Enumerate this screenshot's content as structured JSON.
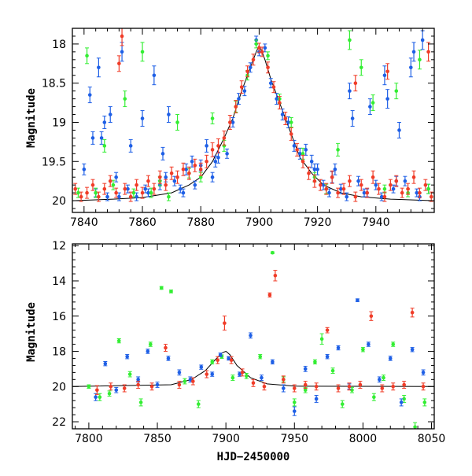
{
  "colors": {
    "green": "#33ee33",
    "blue": "#1e5fe6",
    "red": "#f03c28",
    "model": "#000000"
  },
  "chart_data": [
    {
      "type": "scatter",
      "panel": "top",
      "xlabel": "",
      "ylabel": "Magnitude",
      "xlim": [
        7836,
        7960
      ],
      "ylim": [
        20.15,
        17.8
      ],
      "y_inverted": true,
      "xticks": [
        7840,
        7860,
        7880,
        7900,
        7920,
        7940
      ],
      "yticks": [
        18,
        18.5,
        19,
        19.5,
        20
      ],
      "ytick_labels": [
        "18",
        "18.5",
        "19",
        "19.5",
        "20"
      ],
      "error_bars": true,
      "model_curve": {
        "x": [
          7836,
          7850,
          7860,
          7870,
          7876,
          7880,
          7884,
          7888,
          7891,
          7894,
          7896,
          7898,
          7899,
          7900,
          7901,
          7902,
          7904,
          7906,
          7908,
          7911,
          7914,
          7918,
          7922,
          7928,
          7935,
          7945,
          7960
        ],
        "y": [
          20.0,
          19.98,
          19.96,
          19.9,
          19.8,
          19.7,
          19.5,
          19.2,
          18.95,
          18.6,
          18.4,
          18.2,
          18.1,
          18.02,
          18.1,
          18.2,
          18.45,
          18.65,
          18.85,
          19.15,
          19.45,
          19.65,
          19.8,
          19.9,
          19.95,
          19.98,
          20.0
        ]
      },
      "series": [
        {
          "color": "blue",
          "x": [
            7840,
            7842,
            7844,
            7845,
            7846,
            7848,
            7849,
            7851,
            7853,
            7855,
            7856,
            7858,
            7860,
            7862,
            7864,
            7866,
            7868,
            7869,
            7871,
            7873,
            7875,
            7877,
            7878,
            7880,
            7882,
            7884,
            7886,
            7889,
            7891,
            7893,
            7895,
            7897,
            7899,
            7900,
            7902,
            7904,
            7906,
            7908,
            7910,
            7912,
            7914,
            7916,
            7918,
            7920,
            7922,
            7924,
            7926,
            7928,
            7930,
            7932,
            7934,
            7936,
            7938,
            7940,
            7942,
            7944,
            7946,
            7948,
            7950,
            7952,
            7954,
            7956,
            7958,
            7843,
            7847,
            7852,
            7861,
            7867,
            7874,
            7885,
            7919,
            7925,
            7931,
            7937,
            7943,
            7947,
            7953,
            7955
          ],
          "y": [
            19.6,
            18.65,
            19.9,
            18.3,
            19.2,
            19.95,
            18.9,
            19.7,
            18.1,
            19.85,
            19.3,
            19.95,
            18.95,
            19.9,
            18.4,
            19.8,
            19.7,
            18.9,
            19.75,
            19.85,
            19.6,
            19.5,
            19.8,
            19.55,
            19.3,
            19.7,
            19.45,
            19.4,
            19.0,
            18.7,
            18.6,
            18.3,
            17.95,
            18.1,
            18.05,
            18.5,
            18.7,
            18.9,
            19.0,
            19.3,
            19.4,
            19.35,
            19.5,
            19.6,
            19.8,
            19.9,
            19.6,
            19.85,
            19.95,
            18.95,
            19.75,
            19.9,
            18.8,
            19.8,
            19.95,
            18.7,
            19.85,
            19.1,
            19.75,
            18.3,
            19.9,
            17.95,
            19.85,
            19.2,
            19.0,
            19.95,
            19.85,
            19.4,
            19.9,
            19.5,
            19.6,
            19.7,
            18.6,
            19.9,
            18.4,
            19.75,
            18.1,
            19.95
          ],
          "err": [
            0.07,
            0.1,
            0.05,
            0.12,
            0.08,
            0.05,
            0.1,
            0.06,
            0.12,
            0.05,
            0.08,
            0.05,
            0.1,
            0.05,
            0.12,
            0.06,
            0.06,
            0.1,
            0.06,
            0.05,
            0.07,
            0.07,
            0.05,
            0.07,
            0.08,
            0.06,
            0.07,
            0.06,
            0.06,
            0.07,
            0.06,
            0.06,
            0.05,
            0.05,
            0.05,
            0.06,
            0.07,
            0.07,
            0.07,
            0.07,
            0.07,
            0.07,
            0.08,
            0.07,
            0.06,
            0.05,
            0.07,
            0.06,
            0.05,
            0.1,
            0.06,
            0.05,
            0.1,
            0.06,
            0.05,
            0.12,
            0.05,
            0.1,
            0.06,
            0.12,
            0.05,
            0.12,
            0.06,
            0.08,
            0.08,
            0.05,
            0.05,
            0.08,
            0.05,
            0.07,
            0.07,
            0.07,
            0.1,
            0.05,
            0.12,
            0.06,
            0.12,
            0.05
          ]
        },
        {
          "color": "green",
          "x": [
            7838,
            7841,
            7844,
            7847,
            7850,
            7854,
            7857,
            7860,
            7863,
            7866,
            7869,
            7872,
            7876,
            7880,
            7884,
            7888,
            7892,
            7896,
            7899,
            7903,
            7907,
            7911,
            7915,
            7919,
            7923,
            7927,
            7931,
            7935,
            7939,
            7943,
            7947,
            7951,
            7955,
            7958
          ],
          "y": [
            19.9,
            18.15,
            19.9,
            19.3,
            19.8,
            18.7,
            19.9,
            18.1,
            19.9,
            19.75,
            19.95,
            19.0,
            19.65,
            19.7,
            18.95,
            19.3,
            18.8,
            18.4,
            18.0,
            18.15,
            18.7,
            19.0,
            19.4,
            19.7,
            19.85,
            19.35,
            17.95,
            18.3,
            18.75,
            19.85,
            18.6,
            19.9,
            18.2,
            19.85
          ],
          "err": [
            0.06,
            0.1,
            0.06,
            0.08,
            0.06,
            0.1,
            0.05,
            0.12,
            0.06,
            0.06,
            0.05,
            0.1,
            0.06,
            0.06,
            0.07,
            0.07,
            0.07,
            0.06,
            0.05,
            0.05,
            0.06,
            0.06,
            0.07,
            0.06,
            0.06,
            0.08,
            0.12,
            0.1,
            0.1,
            0.05,
            0.1,
            0.05,
            0.12,
            0.06
          ]
        },
        {
          "color": "red",
          "x": [
            7837,
            7839,
            7841,
            7843,
            7845,
            7847,
            7849,
            7851,
            7852,
            7854,
            7856,
            7858,
            7860,
            7862,
            7864,
            7866,
            7868,
            7870,
            7872,
            7874,
            7876,
            7878,
            7880,
            7882,
            7884,
            7886,
            7888,
            7890,
            7892,
            7894,
            7896,
            7898,
            7900,
            7901,
            7903,
            7905,
            7907,
            7909,
            7911,
            7913,
            7915,
            7917,
            7919,
            7921,
            7923,
            7925,
            7927,
            7929,
            7931,
            7933,
            7935,
            7937,
            7939,
            7941,
            7943,
            7945,
            7947,
            7949,
            7951,
            7953,
            7955,
            7957,
            7959,
            7853,
            7933,
            7944,
            7958
          ],
          "y": [
            19.85,
            19.95,
            19.9,
            19.8,
            19.95,
            19.85,
            19.75,
            19.9,
            18.25,
            19.85,
            19.95,
            19.8,
            19.9,
            19.75,
            19.85,
            19.7,
            19.8,
            19.65,
            19.7,
            19.6,
            19.65,
            19.55,
            19.6,
            19.5,
            19.35,
            19.3,
            19.2,
            19.0,
            18.8,
            18.55,
            18.35,
            18.2,
            18.05,
            18.1,
            18.3,
            18.55,
            18.75,
            18.95,
            19.15,
            19.35,
            19.5,
            19.65,
            19.75,
            19.8,
            19.85,
            19.7,
            19.9,
            19.85,
            19.75,
            19.95,
            19.8,
            19.9,
            19.7,
            19.85,
            19.95,
            19.8,
            19.75,
            19.9,
            19.85,
            19.7,
            19.9,
            19.8,
            19.95,
            17.9,
            18.5,
            18.35,
            18.1
          ],
          "err": [
            0.07,
            0.06,
            0.07,
            0.07,
            0.06,
            0.07,
            0.07,
            0.06,
            0.1,
            0.07,
            0.06,
            0.07,
            0.07,
            0.07,
            0.07,
            0.08,
            0.07,
            0.08,
            0.08,
            0.08,
            0.08,
            0.08,
            0.08,
            0.08,
            0.09,
            0.09,
            0.09,
            0.09,
            0.08,
            0.08,
            0.07,
            0.07,
            0.06,
            0.06,
            0.07,
            0.07,
            0.08,
            0.08,
            0.08,
            0.08,
            0.08,
            0.08,
            0.08,
            0.07,
            0.07,
            0.08,
            0.06,
            0.07,
            0.07,
            0.06,
            0.07,
            0.06,
            0.08,
            0.07,
            0.06,
            0.07,
            0.07,
            0.06,
            0.07,
            0.08,
            0.06,
            0.07,
            0.06,
            0.12,
            0.1,
            0.1,
            0.12
          ]
        }
      ]
    },
    {
      "type": "scatter",
      "panel": "bottom",
      "xlabel": "HJD−2450000",
      "ylabel": "Magnitude",
      "xlim": [
        7788,
        8052
      ],
      "ylim": [
        22.4,
        11.9
      ],
      "y_inverted": true,
      "xticks": [
        7800,
        7850,
        7900,
        7950,
        8000,
        8050
      ],
      "yticks": [
        12,
        14,
        16,
        18,
        20,
        22
      ],
      "ytick_labels": [
        "12",
        "14",
        "16",
        "18",
        "20",
        "22"
      ],
      "error_bars": true,
      "model_curve": {
        "x": [
          7788,
          7860,
          7875,
          7885,
          7892,
          7897,
          7900,
          7903,
          7908,
          7918,
          7930,
          7950,
          8052
        ],
        "y": [
          20.0,
          19.9,
          19.6,
          19.1,
          18.5,
          18.1,
          18.0,
          18.2,
          18.8,
          19.5,
          19.85,
          19.98,
          20.0
        ]
      },
      "series": [
        {
          "color": "green",
          "x": [
            7800,
            7808,
            7815,
            7822,
            7830,
            7838,
            7845,
            7853,
            7860,
            7870,
            7880,
            7890,
            7897,
            7905,
            7915,
            7925,
            7934,
            7942,
            7950,
            7958,
            7965,
            7970,
            7978,
            7985,
            7992,
            8000,
            8008,
            8015,
            8022,
            8030,
            8038,
            8045
          ],
          "y": [
            20.0,
            20.6,
            20.4,
            17.4,
            19.3,
            20.9,
            17.6,
            14.4,
            14.6,
            19.7,
            21.0,
            18.6,
            18.3,
            19.5,
            19.4,
            18.3,
            12.4,
            19.6,
            20.9,
            20.2,
            18.6,
            17.3,
            19.1,
            21.0,
            20.2,
            17.9,
            20.6,
            19.5,
            17.6,
            20.7,
            22.3,
            20.9
          ],
          "err": [
            0.1,
            0.2,
            0.15,
            0.12,
            0.15,
            0.2,
            0.12,
            0.08,
            0.08,
            0.15,
            0.2,
            0.12,
            0.1,
            0.15,
            0.15,
            0.12,
            0.05,
            0.15,
            0.2,
            0.15,
            0.12,
            0.3,
            0.15,
            0.2,
            0.15,
            0.12,
            0.2,
            0.15,
            0.12,
            0.2,
            0.25,
            0.2
          ]
        },
        {
          "color": "blue",
          "x": [
            7805,
            7812,
            7820,
            7828,
            7836,
            7843,
            7850,
            7858,
            7866,
            7874,
            7882,
            7890,
            7896,
            7902,
            7910,
            7918,
            7926,
            7934,
            7942,
            7950,
            7958,
            7966,
            7974,
            7982,
            7990,
            7996,
            8004,
            8012,
            8020,
            8028,
            8036,
            8044
          ],
          "y": [
            20.6,
            18.7,
            20.2,
            18.3,
            19.6,
            18.0,
            19.9,
            18.4,
            19.2,
            19.6,
            18.9,
            19.3,
            18.2,
            18.4,
            19.3,
            17.1,
            19.5,
            18.6,
            20.1,
            21.4,
            19.0,
            20.7,
            18.3,
            17.8,
            20.0,
            15.1,
            17.6,
            19.6,
            18.4,
            20.9,
            17.9,
            19.2
          ],
          "err": [
            0.2,
            0.12,
            0.15,
            0.12,
            0.15,
            0.12,
            0.15,
            0.12,
            0.15,
            0.15,
            0.12,
            0.12,
            0.1,
            0.1,
            0.12,
            0.15,
            0.15,
            0.12,
            0.2,
            0.25,
            0.15,
            0.2,
            0.12,
            0.12,
            0.15,
            0.08,
            0.12,
            0.15,
            0.12,
            0.2,
            0.12,
            0.15
          ]
        },
        {
          "color": "red",
          "x": [
            7806,
            7816,
            7826,
            7836,
            7846,
            7856,
            7866,
            7876,
            7886,
            7894,
            7899,
            7904,
            7912,
            7920,
            7928,
            7932,
            7936,
            7942,
            7950,
            7958,
            7966,
            7974,
            7982,
            7990,
            7998,
            8006,
            8014,
            8022,
            8030,
            8036,
            8044
          ],
          "y": [
            20.2,
            20.0,
            20.1,
            19.9,
            20.0,
            17.8,
            19.9,
            19.7,
            19.3,
            18.5,
            16.4,
            18.5,
            19.2,
            19.8,
            20.0,
            14.8,
            13.7,
            19.6,
            20.1,
            19.9,
            20.0,
            16.8,
            20.1,
            20.0,
            19.9,
            16.0,
            20.1,
            20.0,
            19.9,
            15.8,
            20.0
          ],
          "err": [
            0.25,
            0.2,
            0.2,
            0.2,
            0.2,
            0.2,
            0.2,
            0.2,
            0.2,
            0.2,
            0.4,
            0.2,
            0.2,
            0.2,
            0.2,
            0.12,
            0.3,
            0.2,
            0.2,
            0.2,
            0.2,
            0.15,
            0.2,
            0.2,
            0.2,
            0.25,
            0.2,
            0.2,
            0.2,
            0.25,
            0.2
          ]
        }
      ]
    }
  ]
}
